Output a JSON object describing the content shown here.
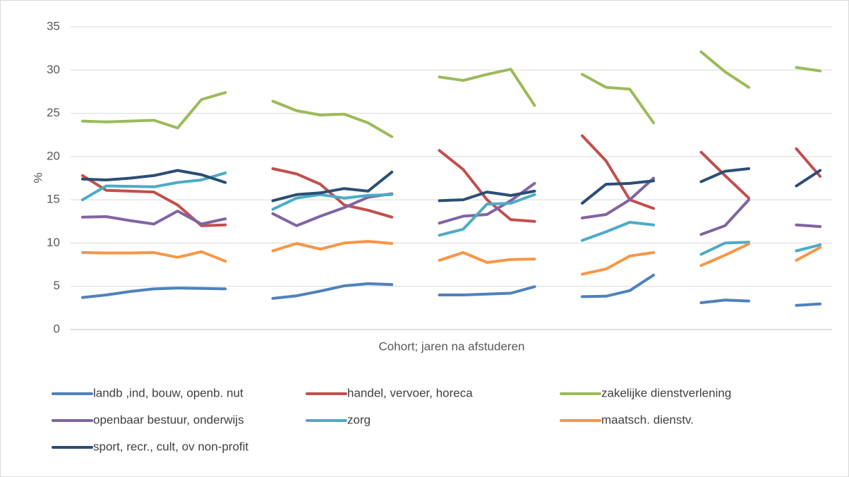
{
  "chart_data": {
    "type": "line",
    "xlabel": "Cohort; jaren na afstuderen",
    "ylabel": "%",
    "categories": [
      null,
      null,
      null,
      null,
      null,
      null,
      null,
      null,
      null,
      null,
      null,
      null,
      null,
      null,
      null,
      null,
      null,
      null,
      null,
      null,
      null,
      null,
      null,
      null,
      null,
      null,
      null,
      null,
      null,
      null,
      null,
      null
    ],
    "ylim": [
      0,
      35
    ],
    "yticks": [
      0,
      5,
      10,
      15,
      20,
      25,
      30,
      35
    ],
    "grid": true,
    "legend": "bottom",
    "series": [
      {
        "name": "landb ,ind, bouw, openb. nut",
        "color": "#4f81bd",
        "values": [
          3.7,
          4.0,
          4.4,
          4.7,
          4.8,
          4.75,
          4.7,
          null,
          3.6,
          3.9,
          4.45,
          5.05,
          5.3,
          5.2,
          null,
          4.0,
          4.0,
          4.1,
          4.2,
          4.95,
          null,
          3.8,
          3.85,
          4.5,
          6.3,
          null,
          3.1,
          3.4,
          3.3,
          null,
          2.8,
          2.95
        ]
      },
      {
        "name": "handel, vervoer, horeca",
        "color": "#c0504d",
        "values": [
          17.8,
          16.1,
          16.0,
          15.9,
          14.4,
          12.0,
          12.1,
          null,
          18.6,
          18.0,
          16.8,
          14.4,
          13.8,
          13.0,
          null,
          20.7,
          18.5,
          15.0,
          12.7,
          12.5,
          null,
          22.4,
          19.5,
          15.0,
          14.0,
          null,
          20.5,
          17.8,
          15.2,
          null,
          20.9,
          17.7
        ]
      },
      {
        "name": "zakelijke dienstverlening",
        "color": "#9bbb59",
        "values": [
          24.1,
          24.0,
          24.1,
          24.2,
          23.3,
          26.6,
          27.4,
          null,
          26.4,
          25.3,
          24.8,
          24.9,
          23.9,
          22.3,
          null,
          29.2,
          28.8,
          29.5,
          30.1,
          25.9,
          null,
          29.5,
          28.0,
          27.8,
          23.9,
          null,
          32.1,
          29.8,
          28.0,
          null,
          30.3,
          29.9
        ]
      },
      {
        "name": "openbaar bestuur, onderwijs",
        "color": "#8064a2",
        "values": [
          13.0,
          13.05,
          12.6,
          12.2,
          13.7,
          12.2,
          12.8,
          null,
          13.4,
          12.0,
          13.1,
          14.1,
          15.3,
          15.7,
          null,
          12.3,
          13.1,
          13.3,
          14.9,
          16.9,
          null,
          12.9,
          13.3,
          15.0,
          17.5,
          null,
          11.0,
          12.0,
          15.0,
          null,
          12.1,
          11.9
        ]
      },
      {
        "name": "zorg",
        "color": "#4bacc6",
        "values": [
          15.0,
          16.6,
          16.55,
          16.5,
          17.0,
          17.3,
          18.1,
          null,
          13.9,
          15.2,
          15.6,
          15.2,
          15.5,
          15.6,
          null,
          10.9,
          11.6,
          14.5,
          14.6,
          15.6,
          null,
          10.3,
          11.3,
          12.4,
          12.1,
          null,
          8.7,
          10.0,
          10.1,
          null,
          9.1,
          9.8
        ]
      },
      {
        "name": "maatsch. dienstv.",
        "color": "#f79646",
        "values": [
          8.9,
          8.85,
          8.85,
          8.9,
          8.35,
          9.0,
          7.9,
          null,
          9.1,
          9.95,
          9.3,
          10.0,
          10.2,
          9.95,
          null,
          8.0,
          8.9,
          7.75,
          8.1,
          8.15,
          null,
          6.4,
          7.0,
          8.5,
          8.9,
          null,
          7.4,
          8.6,
          9.9,
          null,
          8.0,
          9.5
        ]
      },
      {
        "name": "sport, recr., cult, ov non-profit",
        "color": "#2c4d75",
        "values": [
          17.4,
          17.3,
          17.5,
          17.8,
          18.4,
          17.9,
          17.0,
          null,
          14.9,
          15.6,
          15.8,
          16.3,
          16.0,
          18.2,
          null,
          14.9,
          15.0,
          15.9,
          15.5,
          16.0,
          null,
          14.6,
          16.8,
          16.9,
          17.2,
          null,
          17.1,
          18.3,
          18.6,
          null,
          16.6,
          18.4
        ]
      }
    ]
  }
}
